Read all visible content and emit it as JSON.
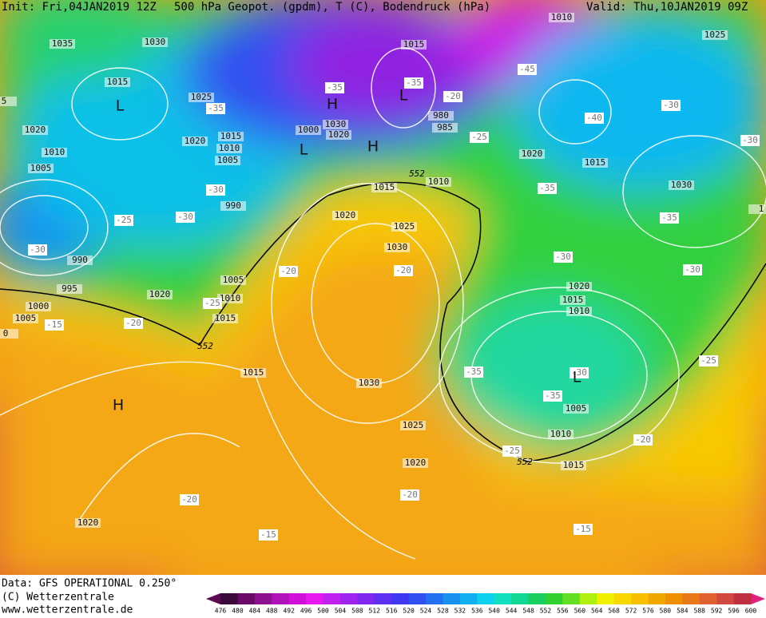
{
  "header": {
    "init": "Init: Fri,04JAN2019 12Z",
    "title": "500 hPa Geopot. (gpdm), T (C), Bodendruck (hPa)",
    "valid": "Valid: Thu,10JAN2019 09Z"
  },
  "footer": {
    "data": "Data: GFS OPERATIONAL 0.250°",
    "copyright": "(C) Wetterzentrale",
    "website": "www.wetterzentrale.de"
  },
  "isobar_labels": [
    1035,
    1030,
    1015,
    1025,
    1020,
    1020,
    1015,
    1010,
    1005,
    1010,
    1005,
    990,
    990,
    995,
    1005,
    1010,
    1015,
    1020,
    1000,
    1005,
    1000,
    1030,
    1020,
    980,
    985,
    1015,
    1020,
    1015,
    1030,
    1025,
    1010,
    1015,
    1010,
    1020,
    1025,
    1030,
    1030,
    1015,
    1025,
    1020,
    1020,
    1020,
    1015,
    1010,
    1005,
    1010,
    1015,
    5,
    0,
    1
  ],
  "temperature_labels": [
    -35,
    -30,
    -30,
    -25,
    -30,
    -20,
    -25,
    -15,
    -20,
    -20,
    -35,
    -30,
    -35,
    -25,
    -20,
    -25,
    -30,
    -30,
    -35,
    -35,
    -30,
    -30,
    -40,
    -45,
    -35,
    -35,
    -20,
    -25,
    -20,
    -20,
    -15,
    -15
  ],
  "pressure_centers": [
    "L",
    "H",
    "L",
    "L",
    "H",
    "H",
    "L"
  ],
  "geopotential_552": [
    552,
    552,
    552
  ],
  "colorbar": {
    "ticks": [
      476,
      480,
      484,
      488,
      492,
      496,
      500,
      504,
      508,
      512,
      516,
      520,
      524,
      528,
      532,
      536,
      540,
      544,
      548,
      552,
      556,
      560,
      564,
      568,
      572,
      576,
      580,
      584,
      588,
      592,
      596,
      600
    ],
    "colors": [
      "#3c0a3a",
      "#6a0a66",
      "#8c1090",
      "#b012b8",
      "#d010d8",
      "#e818f0",
      "#c020f0",
      "#a024f0",
      "#8028f0",
      "#6030f0",
      "#4038f0",
      "#3050f0",
      "#2070f0",
      "#1890f0",
      "#10b0f0",
      "#10d0f0",
      "#10e0c0",
      "#10d890",
      "#18d060",
      "#30d030",
      "#60e020",
      "#b0f010",
      "#f0f000",
      "#f8d800",
      "#f8c000",
      "#f0a800",
      "#f09000",
      "#e87818",
      "#e06030",
      "#d04840",
      "#c03040"
    ],
    "low_end_color": "#5a0a50",
    "high_end_color": "#e0207a"
  }
}
